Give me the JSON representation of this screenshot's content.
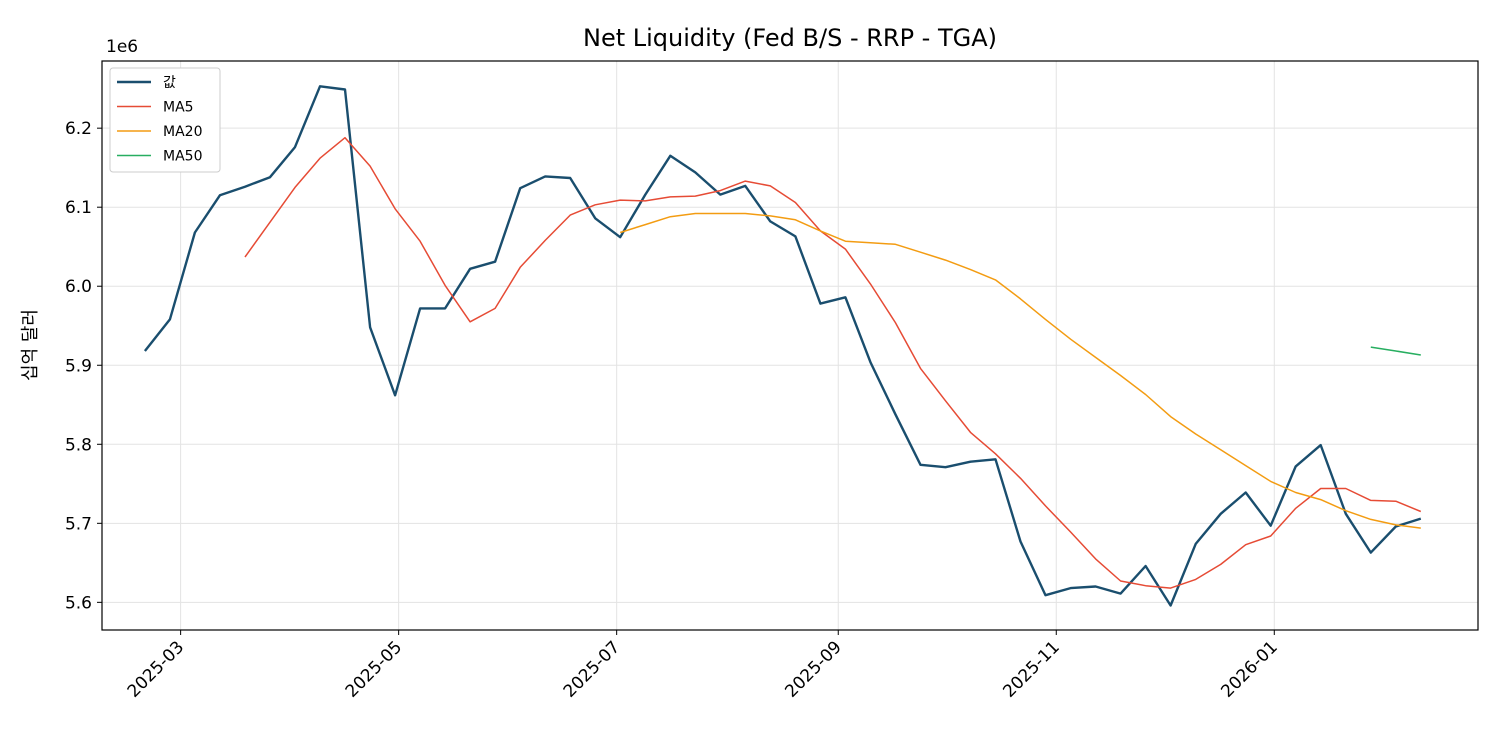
{
  "chart_data": {
    "type": "line",
    "title": "Net Liquidity (Fed B/S - RRP - TGA)",
    "xlabel": "",
    "ylabel": "십억 달러",
    "y_offset_label": "1e6",
    "ylim": [
      5.565,
      6.285
    ],
    "yticks": [
      5.6,
      5.7,
      5.8,
      5.9,
      6.0,
      6.1,
      6.2
    ],
    "ytick_labels": [
      "5.6",
      "5.7",
      "5.8",
      "5.9",
      "6.0",
      "6.1",
      "6.2"
    ],
    "xlim": [
      "2025-02-07",
      "2026-02-27"
    ],
    "xticks": [
      "2025-03-01",
      "2025-05-01",
      "2025-07-01",
      "2025-09-01",
      "2025-11-01",
      "2026-01-01"
    ],
    "xtick_labels": [
      "2025-03",
      "2025-05",
      "2025-07",
      "2025-09",
      "2025-11",
      "2026-01"
    ],
    "grid": true,
    "legend_position": "top-left",
    "x": [
      "2025-02-19",
      "2025-02-26",
      "2025-03-05",
      "2025-03-12",
      "2025-03-19",
      "2025-03-26",
      "2025-04-02",
      "2025-04-09",
      "2025-04-16",
      "2025-04-23",
      "2025-04-30",
      "2025-05-07",
      "2025-05-14",
      "2025-05-21",
      "2025-05-28",
      "2025-06-04",
      "2025-06-11",
      "2025-06-18",
      "2025-06-25",
      "2025-07-02",
      "2025-07-09",
      "2025-07-16",
      "2025-07-23",
      "2025-07-30",
      "2025-08-06",
      "2025-08-13",
      "2025-08-20",
      "2025-08-27",
      "2025-09-03",
      "2025-09-10",
      "2025-09-17",
      "2025-09-24",
      "2025-10-01",
      "2025-10-08",
      "2025-10-15",
      "2025-10-22",
      "2025-10-29",
      "2025-11-05",
      "2025-11-12",
      "2025-11-19",
      "2025-11-26",
      "2025-12-03",
      "2025-12-10",
      "2025-12-17",
      "2025-12-24",
      "2025-12-31",
      "2026-01-07",
      "2026-01-14",
      "2026-01-21",
      "2026-01-28",
      "2026-02-04",
      "2026-02-11"
    ],
    "series": [
      {
        "name": "값",
        "color": "#1a4e6e",
        "values": [
          5.918,
          5.958,
          6.068,
          6.115,
          6.126,
          6.138,
          6.176,
          6.253,
          6.249,
          5.948,
          5.862,
          5.972,
          5.972,
          6.022,
          6.031,
          6.124,
          6.139,
          6.137,
          6.086,
          6.062,
          6.116,
          6.165,
          6.144,
          6.116,
          6.127,
          6.082,
          6.063,
          5.978,
          5.986,
          5.904,
          5.838,
          5.774,
          5.771,
          5.778,
          5.781,
          5.677,
          5.609,
          5.618,
          5.62,
          5.611,
          5.646,
          5.596,
          5.674,
          5.712,
          5.739,
          5.697,
          5.772,
          5.799,
          5.712,
          5.663,
          5.696,
          5.706
        ]
      },
      {
        "name": "MA5",
        "color": "#e64b35",
        "values": [
          null,
          null,
          null,
          null,
          6.037,
          6.081,
          6.125,
          6.162,
          6.188,
          6.152,
          6.098,
          6.057,
          6.001,
          5.955,
          5.972,
          6.024,
          6.058,
          6.09,
          6.103,
          6.109,
          6.108,
          6.113,
          6.114,
          6.121,
          6.133,
          6.127,
          6.106,
          6.07,
          6.047,
          6.003,
          5.954,
          5.896,
          5.855,
          5.815,
          5.788,
          5.757,
          5.722,
          5.689,
          5.655,
          5.627,
          5.621,
          5.618,
          5.629,
          5.648,
          5.673,
          5.684,
          5.719,
          5.744,
          5.744,
          5.729,
          5.728,
          5.715
        ]
      },
      {
        "name": "MA20",
        "color": "#f39c12",
        "values": [
          null,
          null,
          null,
          null,
          null,
          null,
          null,
          null,
          null,
          null,
          null,
          null,
          null,
          null,
          null,
          null,
          null,
          null,
          null,
          6.068,
          6.078,
          6.088,
          6.092,
          6.092,
          6.092,
          6.089,
          6.084,
          6.07,
          6.057,
          6.055,
          6.053,
          6.043,
          6.033,
          6.021,
          6.008,
          5.984,
          5.958,
          5.933,
          5.91,
          5.887,
          5.863,
          5.835,
          5.813,
          5.793,
          5.773,
          5.753,
          5.739,
          5.73,
          5.716,
          5.705,
          5.698,
          5.694
        ]
      },
      {
        "name": "MA50",
        "color": "#27ae60",
        "values": [
          null,
          null,
          null,
          null,
          null,
          null,
          null,
          null,
          null,
          null,
          null,
          null,
          null,
          null,
          null,
          null,
          null,
          null,
          null,
          null,
          null,
          null,
          null,
          null,
          null,
          null,
          null,
          null,
          null,
          null,
          null,
          null,
          null,
          null,
          null,
          null,
          null,
          null,
          null,
          null,
          null,
          null,
          null,
          null,
          null,
          null,
          null,
          null,
          null,
          5.923,
          5.918,
          5.913
        ]
      }
    ]
  }
}
